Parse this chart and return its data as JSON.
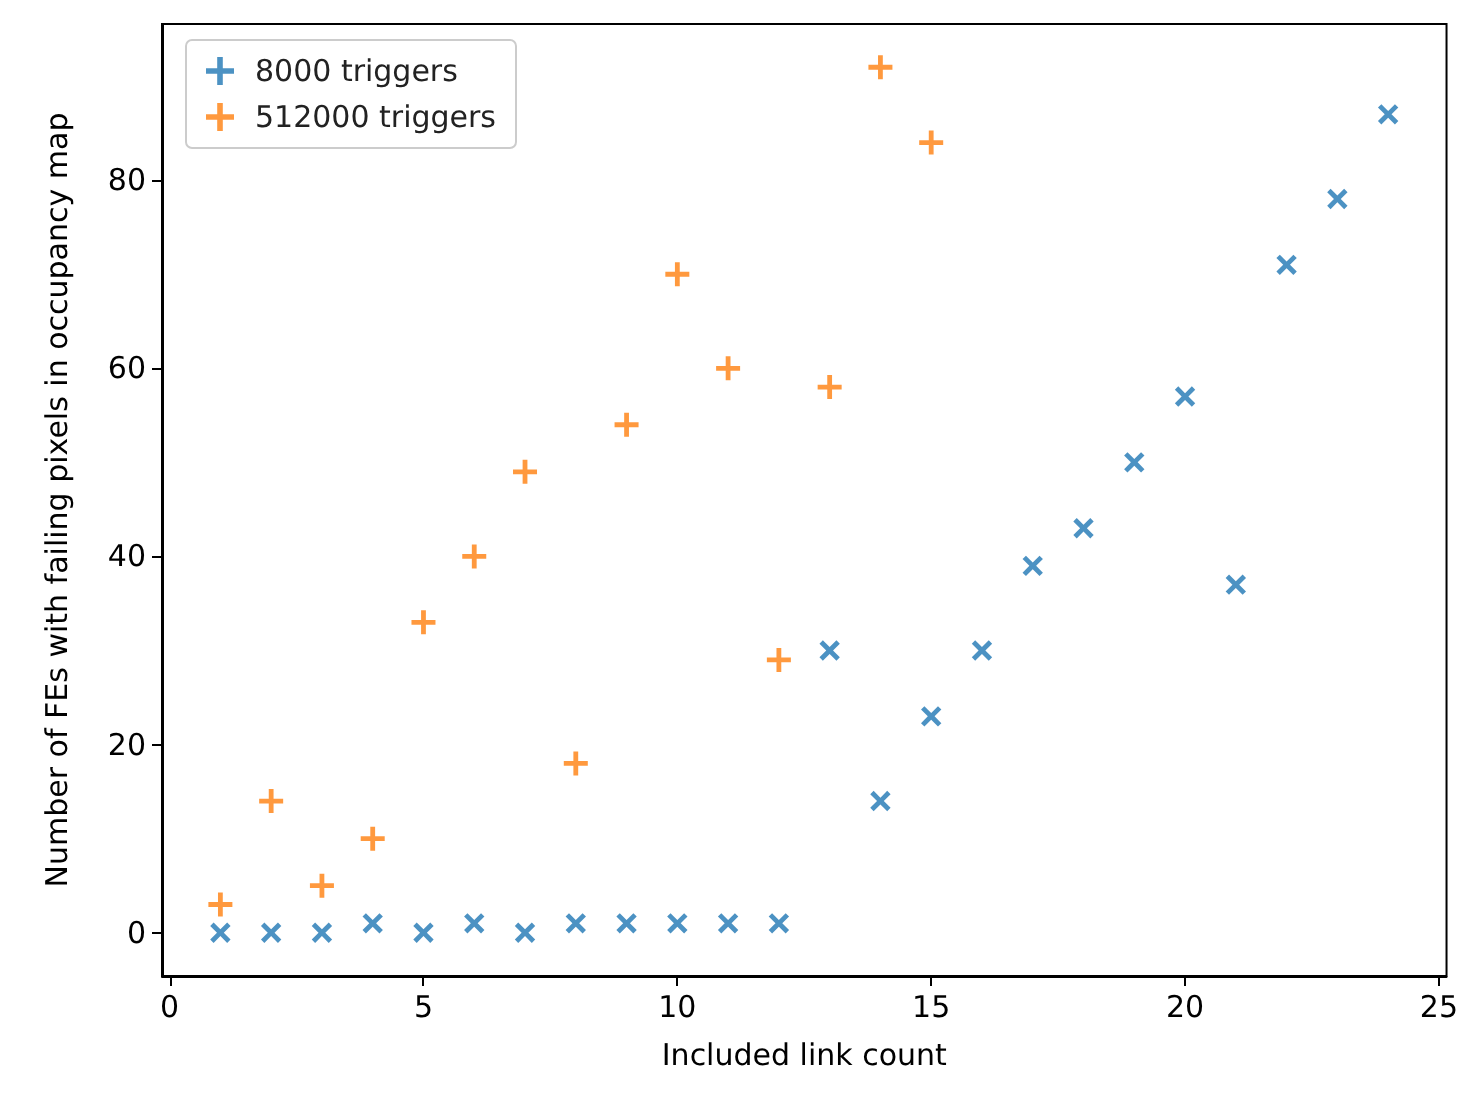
{
  "chart_data": {
    "type": "scatter",
    "xlabel": "Included link count",
    "ylabel": "Number of FEs with failing pixels in occupancy map",
    "xlim": [
      -0.15,
      25.15
    ],
    "xticks": [
      0,
      5,
      10,
      15,
      20,
      25
    ],
    "ylim": [
      -4.6,
      96.6
    ],
    "yticks": [
      0,
      20,
      40,
      60,
      80
    ],
    "grid": false,
    "legend": "top left",
    "series": [
      {
        "name": "8000 triggers",
        "color": "#1f77b4",
        "marker": "x",
        "x": [
          1,
          2,
          3,
          4,
          5,
          6,
          7,
          8,
          9,
          10,
          11,
          12,
          13,
          14,
          15,
          16,
          17,
          18,
          19,
          20,
          21,
          22,
          23,
          24
        ],
        "values": [
          0,
          0,
          0,
          1,
          0,
          1,
          0,
          1,
          1,
          1,
          1,
          1,
          30,
          14,
          23,
          30,
          39,
          43,
          50,
          57,
          37,
          71,
          78,
          87
        ]
      },
      {
        "name": "512000 triggers",
        "color": "#ff7f0e",
        "marker": "cross",
        "x": [
          1,
          2,
          3,
          4,
          5,
          6,
          7,
          8,
          9,
          10,
          11,
          12,
          13,
          14,
          15
        ],
        "values": [
          3,
          14,
          5,
          10,
          33,
          40,
          49,
          18,
          54,
          70,
          60,
          29,
          58,
          92,
          84
        ]
      }
    ]
  }
}
